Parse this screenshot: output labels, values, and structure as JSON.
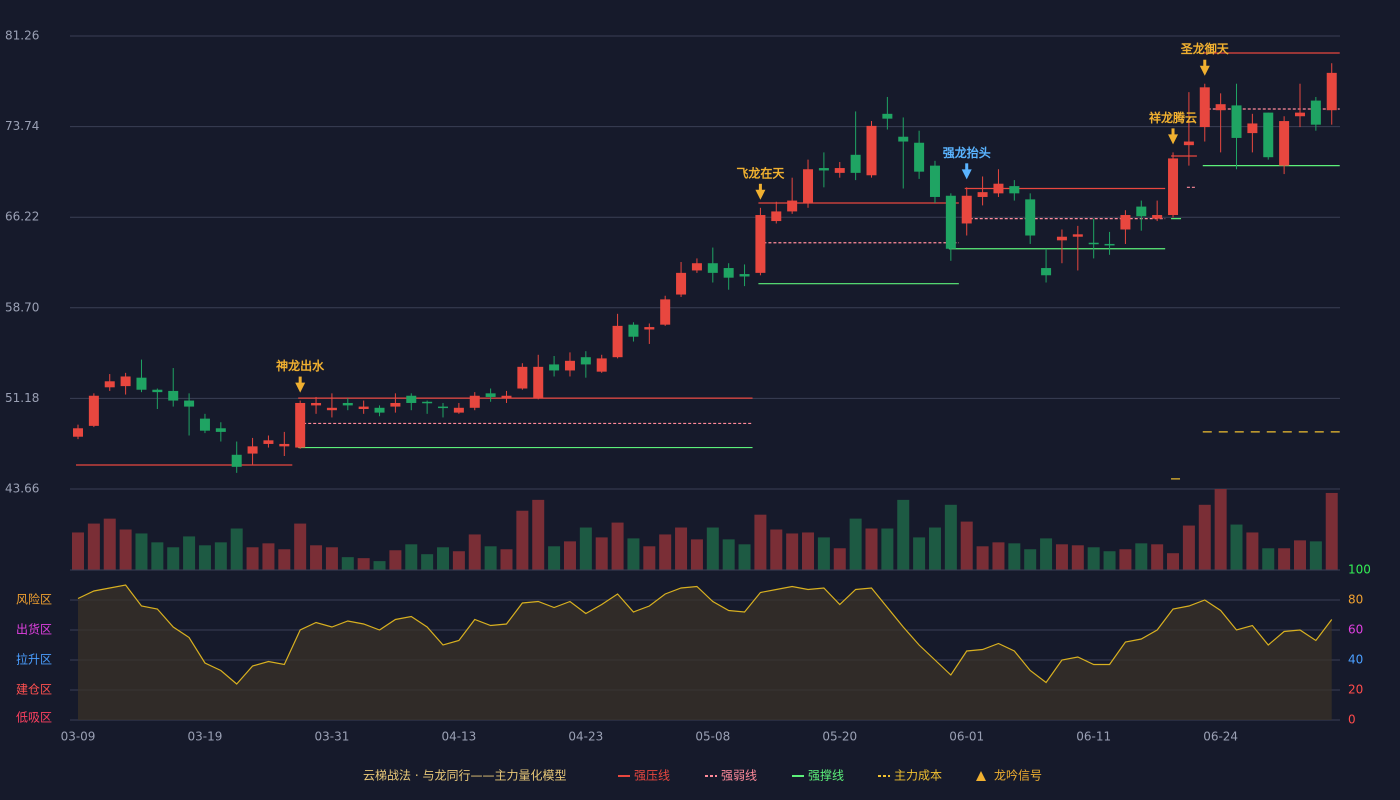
{
  "chart_data": {
    "type": "candlestick",
    "categories": [
      "03-09",
      null,
      null,
      null,
      null,
      null,
      null,
      null,
      "03-19",
      null,
      null,
      null,
      null,
      null,
      null,
      null,
      "03-31",
      null,
      null,
      null,
      null,
      null,
      null,
      null,
      "04-13",
      null,
      null,
      null,
      null,
      null,
      null,
      null,
      "04-23",
      null,
      null,
      null,
      null,
      null,
      null,
      null,
      "05-08",
      null,
      null,
      null,
      null,
      null,
      null,
      null,
      "05-20",
      null,
      null,
      null,
      null,
      null,
      null,
      null,
      "06-01",
      null,
      null,
      null,
      null,
      null,
      null,
      null,
      "06-11",
      null,
      null,
      null,
      null,
      null,
      null,
      null,
      "06-24",
      null,
      null,
      null,
      null,
      null,
      null,
      null
    ],
    "open": [
      48.0,
      48.9,
      52.1,
      52.2,
      52.9,
      51.9,
      51.8,
      51.0,
      49.5,
      48.7,
      46.5,
      46.6,
      47.4,
      47.2,
      47.1,
      50.6,
      50.2,
      50.8,
      50.3,
      50.4,
      50.5,
      51.4,
      50.9,
      50.5,
      50.0,
      50.4,
      51.6,
      51.2,
      52.0,
      51.2,
      54.0,
      53.5,
      54.6,
      53.4,
      54.6,
      57.3,
      56.9,
      57.3,
      59.8,
      61.8,
      62.4,
      62.0,
      61.5,
      61.6,
      65.9,
      66.7,
      67.4,
      70.3,
      69.9,
      71.4,
      69.7,
      74.8,
      72.9,
      72.4,
      70.5,
      68.0,
      65.7,
      67.9,
      68.2,
      68.8,
      67.7,
      62.0,
      64.3,
      64.6,
      64.1,
      64.0,
      65.2,
      67.1,
      66.1,
      66.4,
      72.2,
      73.7,
      75.1,
      75.5,
      73.2,
      74.9,
      70.5,
      74.6,
      75.9,
      75.1
    ],
    "close": [
      48.7,
      51.4,
      52.6,
      53.0,
      51.9,
      51.7,
      51.0,
      50.5,
      48.5,
      48.4,
      45.5,
      47.2,
      47.7,
      47.4,
      50.8,
      50.8,
      50.4,
      50.6,
      50.5,
      50.0,
      50.8,
      50.8,
      50.8,
      50.4,
      50.4,
      51.4,
      51.3,
      51.4,
      53.8,
      53.8,
      53.5,
      54.3,
      54.0,
      54.5,
      57.2,
      56.3,
      57.1,
      59.4,
      61.6,
      62.4,
      61.6,
      61.2,
      61.3,
      66.4,
      66.7,
      67.6,
      70.2,
      70.1,
      70.3,
      69.9,
      73.8,
      74.4,
      72.5,
      70.0,
      67.9,
      63.6,
      68.0,
      68.3,
      69.0,
      68.2,
      64.7,
      61.4,
      64.6,
      64.8,
      64.0,
      63.9,
      66.4,
      66.3,
      66.4,
      71.1,
      72.5,
      77.0,
      75.6,
      72.8,
      74.0,
      71.2,
      74.2,
      74.9,
      73.9,
      78.2
    ],
    "high": [
      49.0,
      51.6,
      53.2,
      53.3,
      54.4,
      52.0,
      53.7,
      51.6,
      49.9,
      49.2,
      47.6,
      47.9,
      48.1,
      48.4,
      51.0,
      51.3,
      51.6,
      51.2,
      51.0,
      50.6,
      51.6,
      51.6,
      51.0,
      50.8,
      50.8,
      51.7,
      52.0,
      51.8,
      54.1,
      54.8,
      54.7,
      55.0,
      55.1,
      54.8,
      58.2,
      57.5,
      57.4,
      59.7,
      62.5,
      62.8,
      63.7,
      62.4,
      62.3,
      67.0,
      67.5,
      69.5,
      71.0,
      71.6,
      70.8,
      75.0,
      74.2,
      76.2,
      74.5,
      73.4,
      70.9,
      68.2,
      68.7,
      69.6,
      70.2,
      69.3,
      68.2,
      63.6,
      65.2,
      65.5,
      66.1,
      65.0,
      66.8,
      67.6,
      67.6,
      71.6,
      76.6,
      77.3,
      76.5,
      77.3,
      74.8,
      74.9,
      74.6,
      77.3,
      76.2,
      79.0
    ],
    "low": [
      47.8,
      48.8,
      51.8,
      51.5,
      51.7,
      50.3,
      50.5,
      48.1,
      48.3,
      47.6,
      45.0,
      45.7,
      47.1,
      46.4,
      47.0,
      49.9,
      49.6,
      50.2,
      49.9,
      49.7,
      50.0,
      50.2,
      49.9,
      49.6,
      49.9,
      50.2,
      50.9,
      50.8,
      51.9,
      51.1,
      53.0,
      53.0,
      52.9,
      53.3,
      54.5,
      55.9,
      55.7,
      57.2,
      59.6,
      61.6,
      60.8,
      60.2,
      60.5,
      61.4,
      65.7,
      66.5,
      67.0,
      68.7,
      69.5,
      69.3,
      69.5,
      73.5,
      68.6,
      69.4,
      67.4,
      62.6,
      64.7,
      67.2,
      67.9,
      67.6,
      64.0,
      60.8,
      62.4,
      61.8,
      62.8,
      63.1,
      64.0,
      65.1,
      65.9,
      66.2,
      70.5,
      72.5,
      71.6,
      70.2,
      71.6,
      71.0,
      69.8,
      73.7,
      73.4,
      73.9
    ],
    "ylim": [
      43.66,
      81.26
    ],
    "yticks": [
      43.66,
      51.18,
      {
        "value": 58.7,
        "label": "58.70"
      },
      66.22,
      73.74,
      81.26
    ],
    "grid": true,
    "up_color": "#e8473f",
    "down_color": "#1fa463",
    "volume": [
      38,
      47,
      52,
      41,
      37,
      28,
      23,
      34,
      25,
      28,
      42,
      23,
      27,
      21,
      47,
      25,
      23,
      13,
      12,
      9,
      20,
      26,
      16,
      23,
      19,
      36,
      24,
      21,
      60,
      71,
      24,
      29,
      43,
      33,
      48,
      32,
      24,
      36,
      43,
      31,
      43,
      31,
      26,
      56,
      41,
      37,
      38,
      33,
      22,
      52,
      42,
      42,
      71,
      33,
      43,
      66,
      49,
      24,
      28,
      27,
      21,
      32,
      26,
      25,
      23,
      19,
      21,
      27,
      26,
      17,
      45,
      66,
      82,
      46,
      38,
      22,
      22,
      30,
      29,
      78
    ],
    "levels": [
      {
        "name": "强压线",
        "color": "#e8473f",
        "style": "solid",
        "segments": [
          {
            "start": 0,
            "end": 13,
            "value": 45.65
          },
          {
            "start": 14,
            "end": 42,
            "value": 51.2
          },
          {
            "start": 43,
            "end": 55,
            "value": 67.4
          },
          {
            "start": 56,
            "end": 68,
            "value": 68.6
          },
          {
            "start": 69,
            "end": 70,
            "value": 71.3
          },
          {
            "start": 71,
            "end": 79,
            "value": 79.85
          }
        ]
      },
      {
        "name": "强弱线",
        "color": "#ff8a9a",
        "style": "dashed",
        "segments": [
          {
            "start": 14,
            "end": 42,
            "value": 49.1
          },
          {
            "start": 43,
            "end": 55,
            "value": 64.1
          },
          {
            "start": 56,
            "end": 68,
            "value": 66.1
          },
          {
            "start": 70,
            "end": 70,
            "value": 68.7
          },
          {
            "start": 71,
            "end": 79,
            "value": 75.2
          }
        ]
      },
      {
        "name": "强撑线",
        "color": "#5cf07a",
        "style": "solid",
        "segments": [
          {
            "start": 14,
            "end": 42,
            "value": 47.1
          },
          {
            "start": 43,
            "end": 55,
            "value": 60.7
          },
          {
            "start": 55,
            "end": 68,
            "value": 63.6
          },
          {
            "start": 69,
            "end": 69,
            "value": 66.1
          },
          {
            "start": 71,
            "end": 79,
            "value": 70.5
          }
        ]
      },
      {
        "name": "主力成本",
        "color": "#f0c030",
        "style": "longdash",
        "segments": [
          {
            "start": 69,
            "end": 69,
            "value": 44.5
          },
          {
            "start": 71,
            "end": 79,
            "value": 48.4
          }
        ]
      }
    ],
    "signals": [
      {
        "name": "神龙出水",
        "index": 14,
        "color": "#f0b030"
      },
      {
        "name": "飞龙在天",
        "index": 43,
        "color": "#f0b030"
      },
      {
        "name": "强龙抬头",
        "index": 56,
        "color": "#5ab4ff"
      },
      {
        "name": "祥龙腾云",
        "index": 69,
        "color": "#f0b030"
      },
      {
        "name": "圣龙御天",
        "index": 71,
        "color": "#f0b030"
      }
    ],
    "signal_legend": {
      "name": "龙吟信号",
      "color": "#f0b030"
    },
    "legend_title": "云梯战法 · 与龙同行——主力量化模型",
    "oscillator": {
      "values": [
        81,
        86,
        88,
        90,
        76,
        74,
        62,
        55,
        38,
        33,
        24,
        36,
        39,
        37,
        60,
        65,
        62,
        66,
        64,
        60,
        67,
        69,
        62,
        50,
        53,
        67,
        63,
        64,
        78,
        79,
        75,
        79,
        71,
        77,
        84,
        72,
        76,
        84,
        88,
        89,
        79,
        73,
        72,
        85,
        87,
        89,
        87,
        88,
        77,
        87,
        88,
        75,
        62,
        50,
        40,
        30,
        46,
        47,
        51,
        46,
        33,
        25,
        40,
        42,
        37,
        37,
        52,
        54,
        60,
        74,
        76,
        80,
        73,
        60,
        63,
        50,
        59,
        60,
        53,
        67
      ],
      "ylim": [
        0,
        100
      ],
      "yticks": [
        {
          "value": 0,
          "label": "0",
          "color": "#ff4b4b"
        },
        {
          "value": 20,
          "label": "20",
          "color": "#ff4b4b"
        },
        {
          "value": 40,
          "label": "40",
          "color": "#4a9eff"
        },
        {
          "value": 60,
          "label": "60",
          "color": "#e040e0"
        },
        {
          "value": 80,
          "label": "80",
          "color": "#f0a030"
        },
        {
          "value": 100,
          "label": "100",
          "color": "#33ee55"
        }
      ],
      "zones": [
        {
          "label": "风险区",
          "value": 80,
          "color": "#f0a030"
        },
        {
          "label": "出货区",
          "value": 60,
          "color": "#e040e0"
        },
        {
          "label": "拉升区",
          "value": 40,
          "color": "#4a9eff"
        },
        {
          "label": "建仓区",
          "value": 20,
          "color": "#ff5050"
        },
        {
          "label": "低吸区",
          "value": 0,
          "color": "#ff4060"
        }
      ],
      "line_color": "#d8b020"
    }
  }
}
